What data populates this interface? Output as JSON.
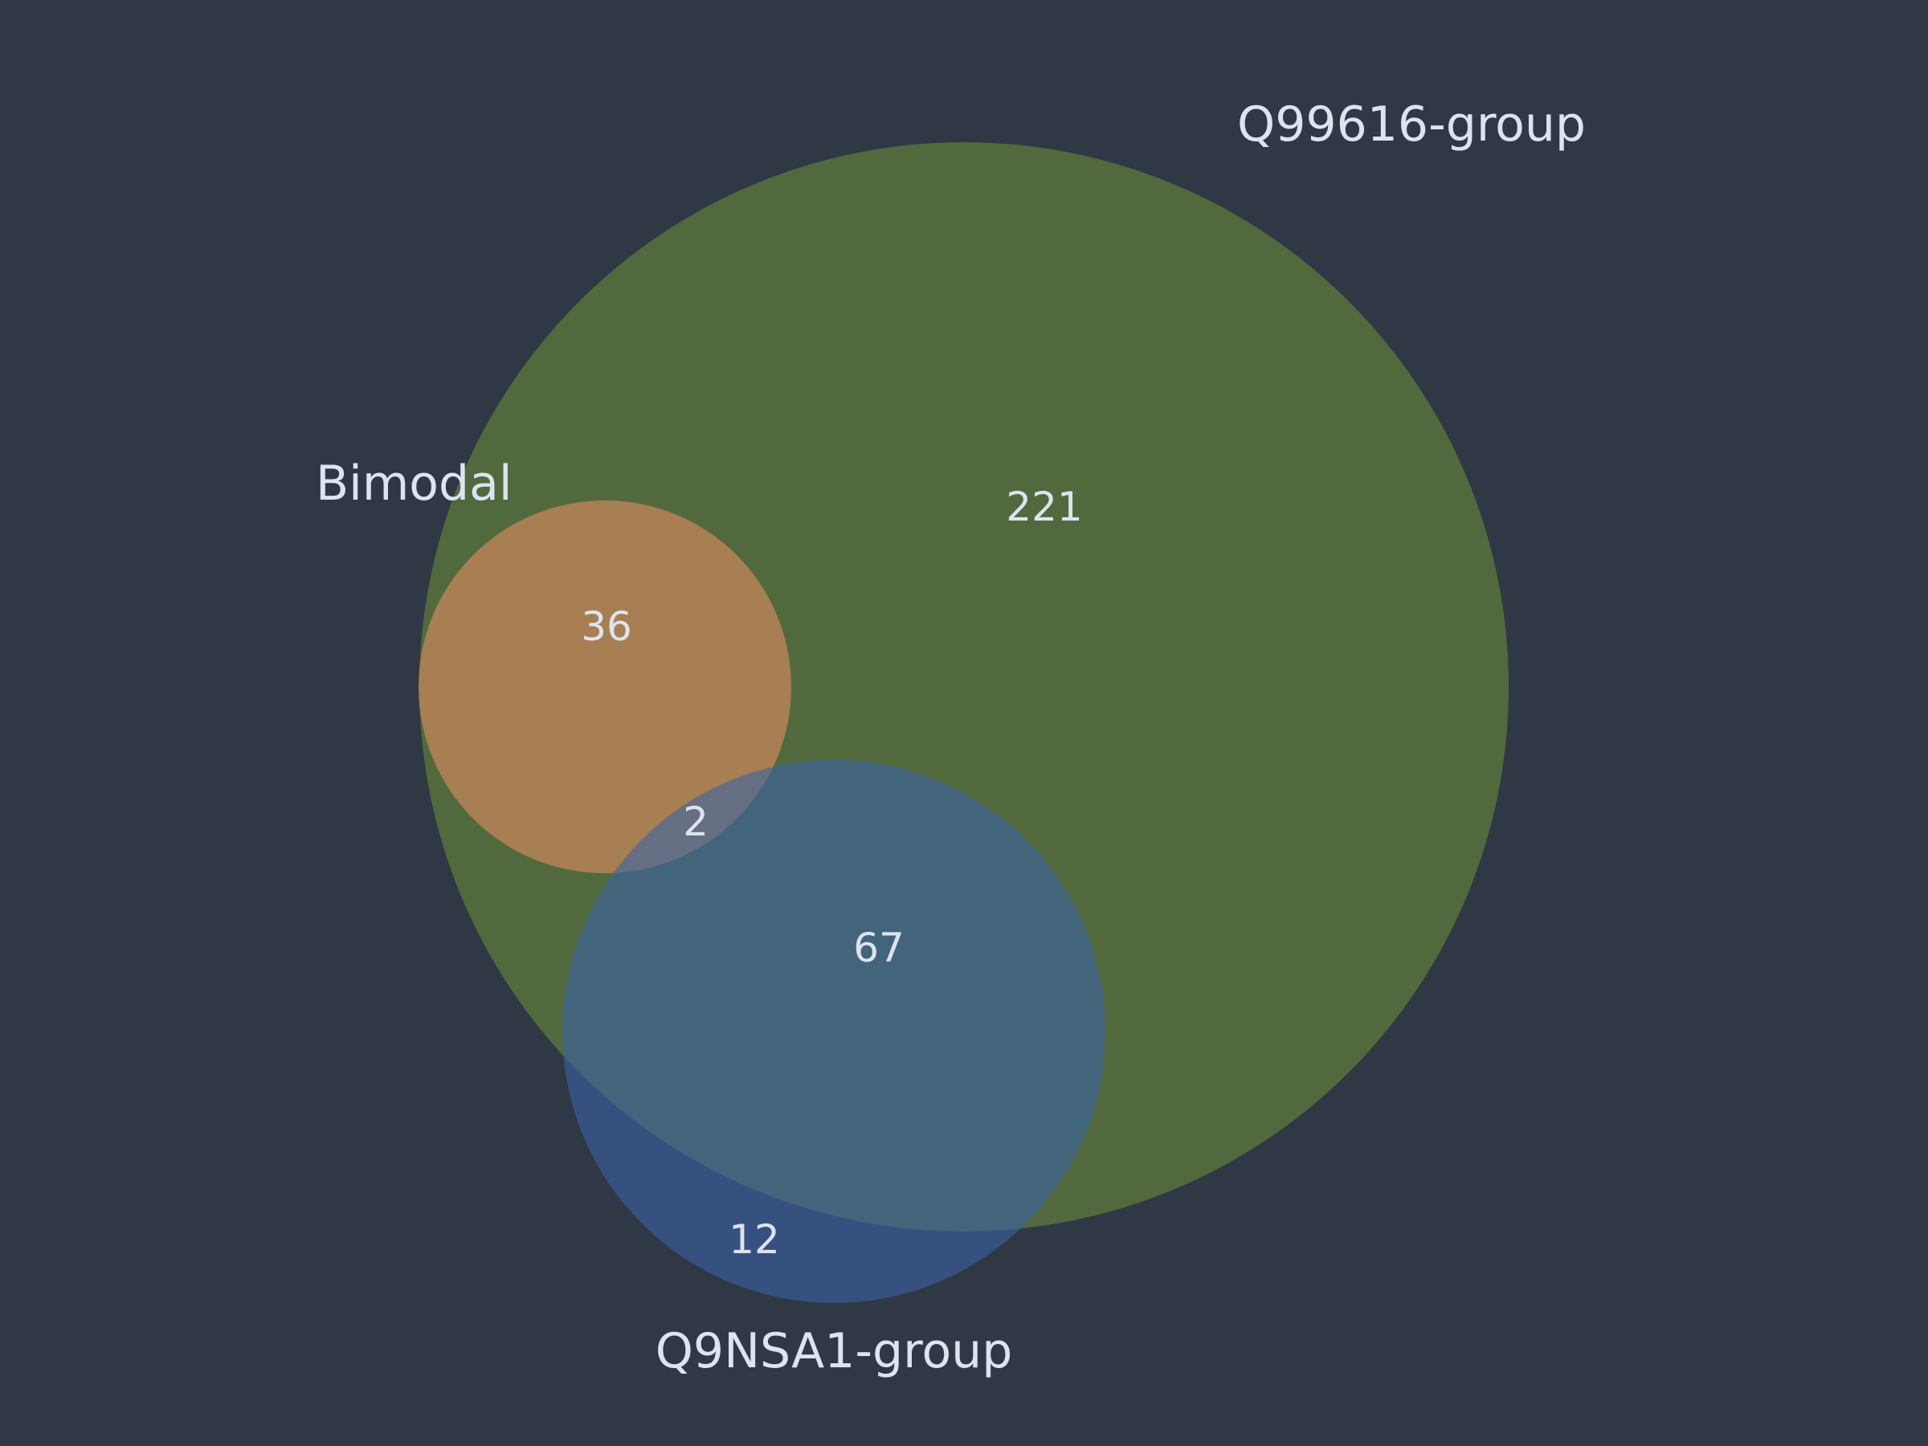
{
  "colors": {
    "background": "#303846",
    "q99616_group": "#5d7a3c",
    "bimodal": "#c4875a",
    "q9nsa1_group": "#3a62a7",
    "text": "#dde3ef"
  },
  "sets": {
    "q99616_group": {
      "label": "Q99616-group"
    },
    "bimodal": {
      "label": "Bimodal"
    },
    "q9nsa1_group": {
      "label": "Q9NSA1-group"
    }
  },
  "regions": {
    "q99616_only": "221",
    "bimodal_only": "36",
    "q9nsa1_only": "12",
    "q99616_and_q9nsa1": "67",
    "all_three": "2"
  }
}
